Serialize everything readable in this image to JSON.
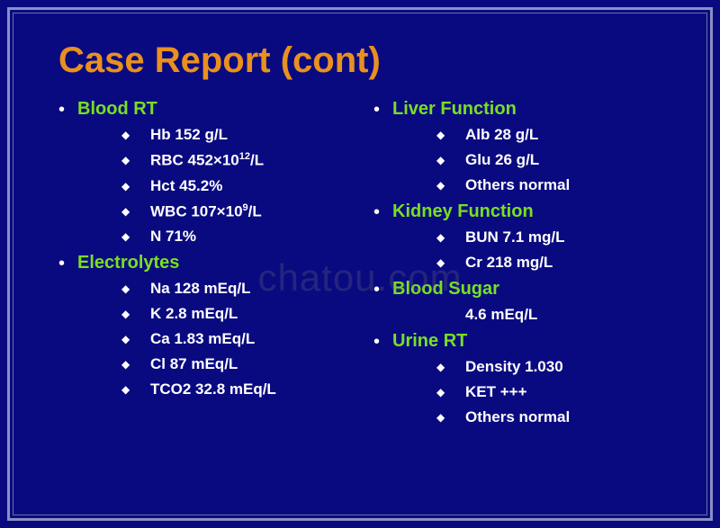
{
  "title": "Case Report (cont)",
  "watermark": "chatou.com",
  "colors": {
    "background": "#0a0a80",
    "title": "#e89020",
    "section": "#78e020",
    "text": "#ffffff",
    "frame_outer": "#8a90c0",
    "frame_inner": "#6a70a8"
  },
  "left": [
    {
      "heading": "Blood RT",
      "items": [
        {
          "text": "Hb 152 g/L",
          "bullet": true
        },
        {
          "text": "RBC 452×10",
          "sup": "12",
          "suffix": "/L",
          "bullet": true
        },
        {
          "text": "Hct 45.2%",
          "bullet": true
        },
        {
          "text": "WBC 107×10",
          "sup": "9",
          "suffix": "/L",
          "bullet": true
        },
        {
          "text": "N 71%",
          "bullet": true
        }
      ]
    },
    {
      "heading": "Electrolytes",
      "items": [
        {
          "text": "Na 128 mEq/L",
          "bullet": true
        },
        {
          "text": "K 2.8 mEq/L",
          "bullet": true
        },
        {
          "text": "Ca 1.83 mEq/L",
          "bullet": true
        },
        {
          "text": "Cl 87 mEq/L",
          "bullet": true
        },
        {
          "text": "TCO2 32.8 mEq/L",
          "bullet": true
        }
      ]
    }
  ],
  "right": [
    {
      "heading": "Liver Function",
      "items": [
        {
          "text": "Alb 28 g/L",
          "bullet": true
        },
        {
          "text": "Glu 26 g/L",
          "bullet": true
        },
        {
          "text": "Others normal",
          "bullet": true
        }
      ]
    },
    {
      "heading": "Kidney Function",
      "items": [
        {
          "text": "BUN 7.1 mg/L",
          "bullet": true
        },
        {
          "text": "Cr 218 mg/L",
          "bullet": true
        }
      ]
    },
    {
      "heading": "Blood Sugar",
      "items": [
        {
          "text": "4.6 mEq/L",
          "bullet": false
        }
      ]
    },
    {
      "heading": "Urine RT",
      "items": [
        {
          "text": "Density 1.030",
          "bullet": true
        },
        {
          "text": "KET +++",
          "bullet": true
        },
        {
          "text": "Others normal",
          "bullet": true
        }
      ]
    }
  ]
}
